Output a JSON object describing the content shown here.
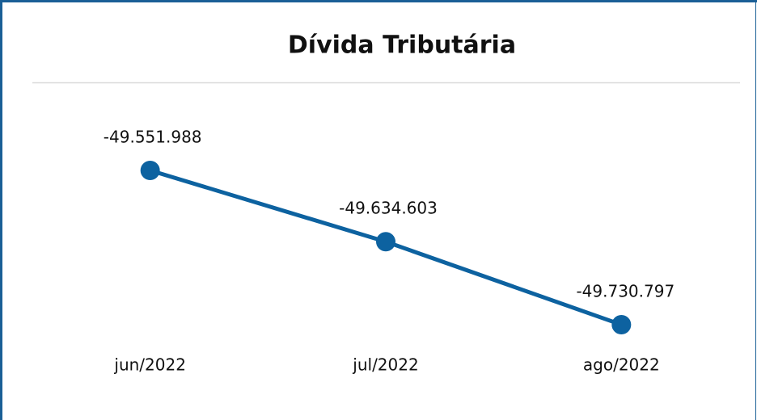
{
  "chart_data": {
    "type": "line",
    "title": "Dívida Tributária",
    "categories": [
      "jun/2022",
      "jul/2022",
      "ago/2022"
    ],
    "values": [
      -49551988,
      -49634603,
      -49730797
    ],
    "value_labels": [
      "-49.551.988",
      "-49.634.603",
      "-49.730.797"
    ],
    "color": "#0d62a0"
  }
}
